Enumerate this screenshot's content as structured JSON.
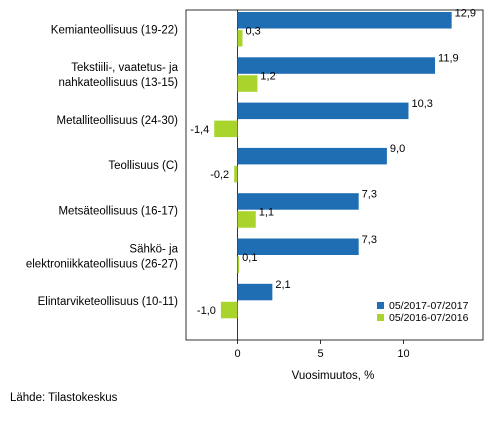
{
  "chart_data": {
    "type": "bar",
    "orientation": "horizontal",
    "categories": [
      [
        "Kemianteollisuus (19-22)"
      ],
      [
        "Tekstiili-, vaatetus- ja",
        "nahkateollisuus (13-15)"
      ],
      [
        "Metalliteollisuus (24-30)"
      ],
      [
        "Teollisuus (C)"
      ],
      [
        "Metsäteollisuus (16-17)"
      ],
      [
        "Sähkö- ja",
        "elektroniikkateollisuus (26-27)"
      ],
      [
        "Elintarviketeollisuus (10-11)"
      ]
    ],
    "series": [
      {
        "name": "05/2017-07/2017",
        "color": "#1f6db3",
        "values": [
          12.9,
          11.9,
          10.3,
          9.0,
          7.3,
          7.3,
          2.1
        ],
        "labels": [
          "12,9",
          "11,9",
          "10,3",
          "9,0",
          "7,3",
          "7,3",
          "2,1"
        ]
      },
      {
        "name": "05/2016-07/2016",
        "color": "#a9d42c",
        "values": [
          0.3,
          1.2,
          -1.4,
          -0.2,
          1.1,
          0.1,
          -1.0
        ],
        "labels": [
          "0,3",
          "1,2",
          "-1,4",
          "-0,2",
          "1,1",
          "0,1",
          "-1,0"
        ]
      }
    ],
    "xlim": [
      -3,
      14
    ],
    "xticks": [
      0,
      5,
      10
    ],
    "xtick_labels": [
      "0",
      "5",
      "10"
    ],
    "xlabel": "Vuosimuutos, %",
    "legend_position": "bottom-right",
    "grid": false
  },
  "source": "Lähde: Tilastokeskus"
}
